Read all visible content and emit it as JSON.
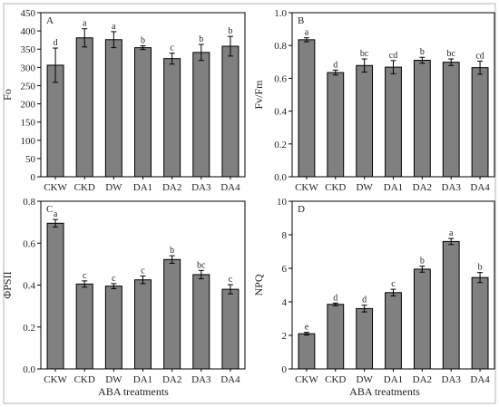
{
  "figure": {
    "x_axis_title": "ABA treatments"
  },
  "chart_data": [
    {
      "type": "bar",
      "panel": "A",
      "ylabel": "Fo",
      "ylim": [
        0,
        450
      ],
      "yticks": [
        0,
        50,
        100,
        150,
        200,
        250,
        300,
        350,
        400,
        450
      ],
      "categories": [
        "CKW",
        "CKD",
        "DW",
        "DA1",
        "DA2",
        "DA3",
        "DA4"
      ],
      "values": [
        306,
        381,
        376,
        354,
        324,
        341,
        358
      ],
      "errors": [
        47,
        25,
        22,
        5,
        15,
        22,
        27
      ],
      "significance": [
        "d",
        "a",
        "a",
        "b",
        "c",
        "b",
        "b"
      ],
      "bar_color": "#808080",
      "grid": false
    },
    {
      "type": "bar",
      "panel": "B",
      "ylabel": "Fv/Fm",
      "ylim": [
        0,
        1.0
      ],
      "yticks": [
        0.0,
        0.2,
        0.4,
        0.6,
        0.8,
        1.0
      ],
      "categories": [
        "CKW",
        "CKD",
        "DW",
        "DA1",
        "DA2",
        "DA3",
        "DA4"
      ],
      "values": [
        0.835,
        0.635,
        0.678,
        0.668,
        0.71,
        0.698,
        0.665
      ],
      "errors": [
        0.012,
        0.015,
        0.04,
        0.04,
        0.018,
        0.02,
        0.04
      ],
      "significance": [
        "a",
        "d",
        "bc",
        "cd",
        "b",
        "bc",
        "cd"
      ],
      "bar_color": "#808080",
      "grid": false
    },
    {
      "type": "bar",
      "panel": "C",
      "ylabel": "ΦPSII",
      "ylim": [
        0,
        0.8
      ],
      "yticks": [
        0.0,
        0.2,
        0.4,
        0.6,
        0.8
      ],
      "categories": [
        "CKW",
        "CKD",
        "DW",
        "DA1",
        "DA2",
        "DA3",
        "DA4"
      ],
      "values": [
        0.695,
        0.405,
        0.395,
        0.425,
        0.522,
        0.45,
        0.38
      ],
      "errors": [
        0.018,
        0.015,
        0.012,
        0.018,
        0.018,
        0.02,
        0.022
      ],
      "significance": [
        "a",
        "c",
        "c",
        "c",
        "b",
        "bc",
        "c"
      ],
      "bar_color": "#808080",
      "grid": false
    },
    {
      "type": "bar",
      "panel": "D",
      "ylabel": "NPQ",
      "ylim": [
        0,
        10
      ],
      "yticks": [
        0,
        2,
        4,
        6,
        8,
        10
      ],
      "categories": [
        "CKW",
        "CKD",
        "DW",
        "DA1",
        "DA2",
        "DA3",
        "DA4"
      ],
      "values": [
        2.1,
        3.85,
        3.6,
        4.55,
        5.95,
        7.6,
        5.45
      ],
      "errors": [
        0.08,
        0.08,
        0.2,
        0.2,
        0.18,
        0.18,
        0.3
      ],
      "significance": [
        "e",
        "d",
        "d",
        "c",
        "b",
        "a",
        "b"
      ],
      "bar_color": "#808080",
      "grid": false
    }
  ]
}
